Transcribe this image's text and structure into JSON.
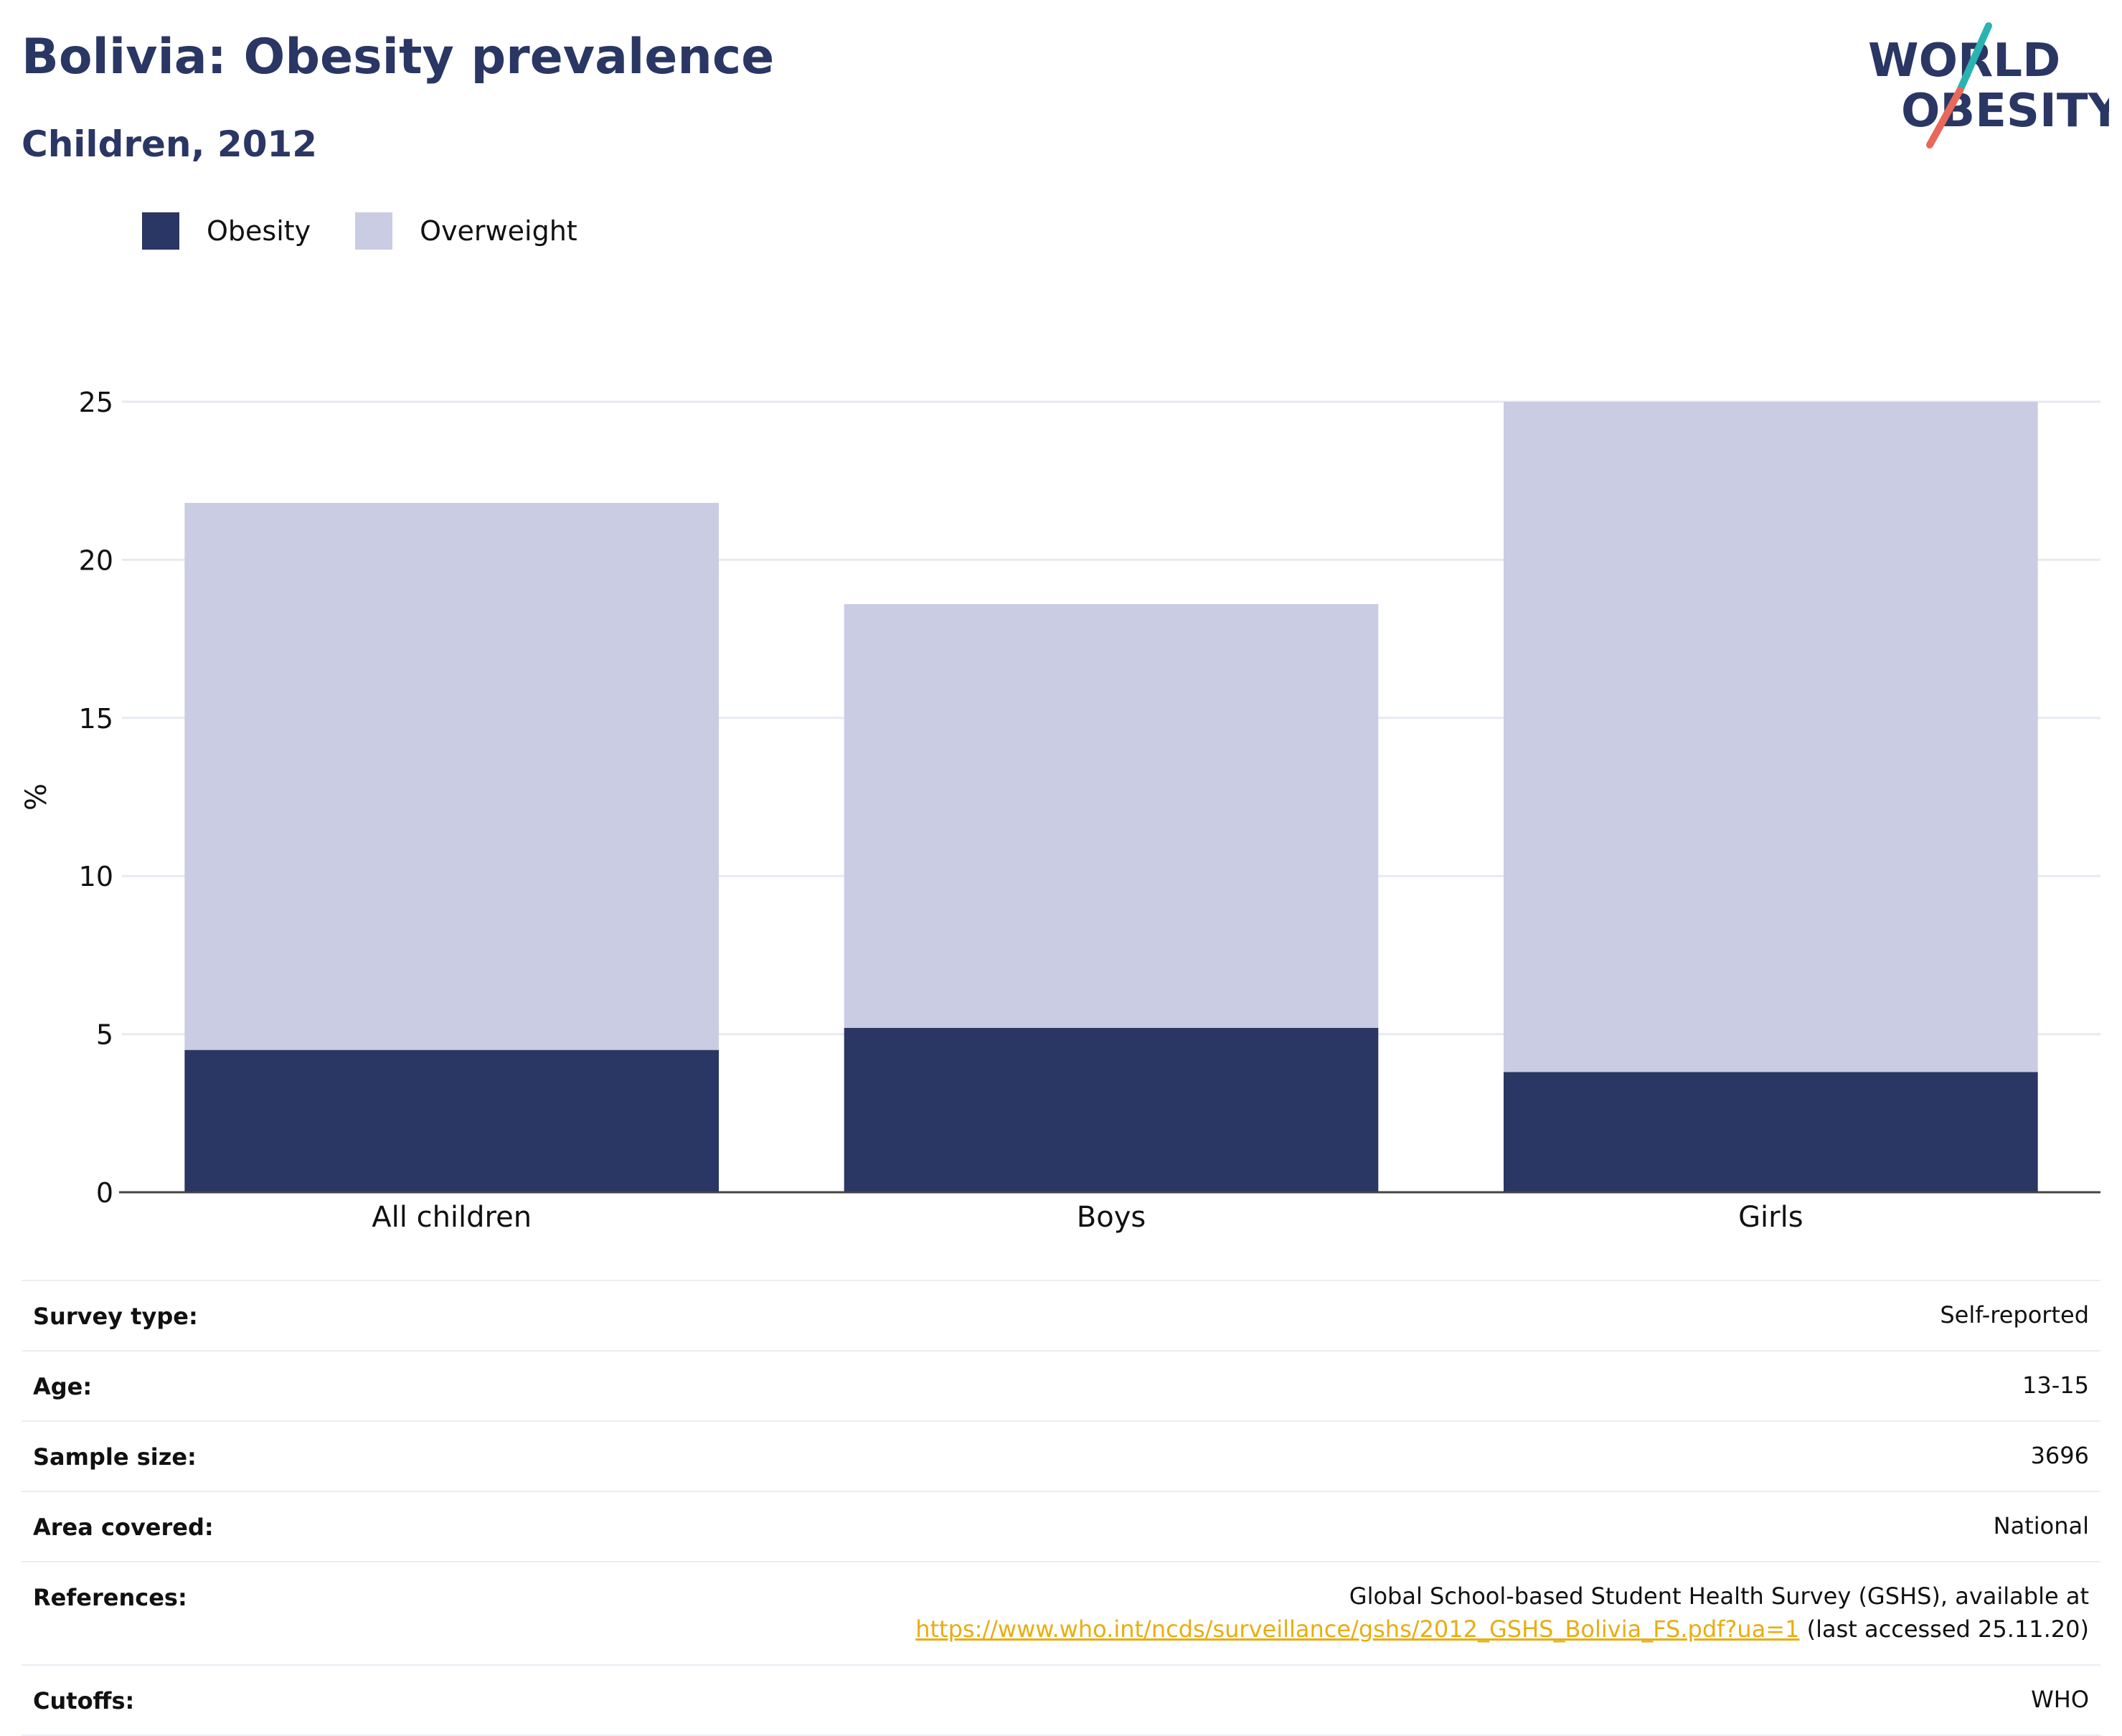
{
  "title": "Bolivia: Obesity prevalence",
  "subtitle": "Children, 2012",
  "logo": {
    "line1": "WORLD",
    "line2": "OBESITY"
  },
  "colors": {
    "obesity": "#2a3663",
    "overweight": "#cacce4",
    "text": "#2a3663",
    "grid": "#e8eaf2",
    "link": "#e8ad10",
    "logo_teal": "#2ab3b1",
    "logo_coral": "#e8685a"
  },
  "legend": [
    {
      "label": "Obesity",
      "color": "#2a3663"
    },
    {
      "label": "Overweight",
      "color": "#cacce4"
    }
  ],
  "chart_data": {
    "type": "bar",
    "stacked": true,
    "categories": [
      "All children",
      "Boys",
      "Girls"
    ],
    "series": [
      {
        "name": "Obesity",
        "values": [
          4.5,
          5.2,
          3.8
        ]
      },
      {
        "name": "Overweight",
        "values": [
          17.3,
          13.4,
          21.2
        ]
      }
    ],
    "ylabel": "%",
    "ylim": [
      0,
      25
    ],
    "yticks": [
      0,
      5,
      10,
      15,
      20,
      25
    ],
    "grid": true,
    "legend_position": "top-left"
  },
  "info_table": [
    {
      "label": "Survey type:",
      "value": "Self-reported"
    },
    {
      "label": "Age:",
      "value": "13-15"
    },
    {
      "label": "Sample size:",
      "value": "3696"
    },
    {
      "label": "Area covered:",
      "value": "National"
    },
    {
      "label": "References:",
      "value_prefix": "Global School-based Student Health Survey (GSHS), available at",
      "link": "https://www.who.int/ncds/surveillance/gshs/2012_GSHS_Bolivia_FS.pdf?ua=1",
      "value_suffix": " (last accessed 25.11.20)"
    },
    {
      "label": "Cutoffs:",
      "value": "WHO"
    }
  ]
}
